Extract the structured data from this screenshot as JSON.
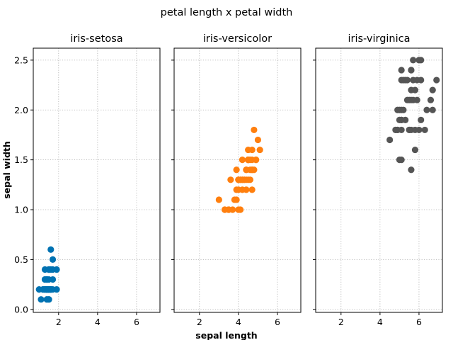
{
  "chart_data": {
    "type": "scatter",
    "title": "petal length x petal width",
    "xlabel": "sepal length",
    "ylabel": "sepal width",
    "xlim": [
      0.7,
      7.2
    ],
    "ylim": [
      -0.03,
      2.62
    ],
    "xticks": [
      "2",
      "4",
      "6"
    ],
    "yticks": [
      "0.0",
      "0.5",
      "1.0",
      "1.5",
      "2.0",
      "2.5"
    ],
    "grid": true,
    "panels": [
      {
        "title": "iris-setosa",
        "color": "#0072b2",
        "x": [
          1.4,
          1.4,
          1.3,
          1.5,
          1.4,
          1.7,
          1.4,
          1.5,
          1.4,
          1.5,
          1.5,
          1.6,
          1.4,
          1.1,
          1.2,
          1.5,
          1.3,
          1.4,
          1.7,
          1.5,
          1.7,
          1.5,
          1.0,
          1.7,
          1.9,
          1.6,
          1.6,
          1.5,
          1.4,
          1.6,
          1.6,
          1.5,
          1.5,
          1.4,
          1.5,
          1.2,
          1.3,
          1.4,
          1.3,
          1.5,
          1.3,
          1.3,
          1.3,
          1.6,
          1.9,
          1.4,
          1.6,
          1.4,
          1.5,
          1.4
        ],
        "y": [
          0.2,
          0.2,
          0.2,
          0.2,
          0.2,
          0.4,
          0.3,
          0.2,
          0.2,
          0.1,
          0.2,
          0.2,
          0.1,
          0.1,
          0.2,
          0.4,
          0.4,
          0.3,
          0.3,
          0.3,
          0.2,
          0.4,
          0.2,
          0.5,
          0.2,
          0.2,
          0.4,
          0.2,
          0.2,
          0.2,
          0.2,
          0.4,
          0.1,
          0.2,
          0.2,
          0.2,
          0.2,
          0.1,
          0.2,
          0.2,
          0.3,
          0.3,
          0.2,
          0.6,
          0.4,
          0.3,
          0.2,
          0.2,
          0.2,
          0.2
        ]
      },
      {
        "title": "iris-versicolor",
        "color": "#ff7f0e",
        "x": [
          4.7,
          4.5,
          4.9,
          4.0,
          4.6,
          4.5,
          4.7,
          3.3,
          4.6,
          3.9,
          3.5,
          4.2,
          4.0,
          4.7,
          3.6,
          4.4,
          4.5,
          4.1,
          4.5,
          3.9,
          4.8,
          4.0,
          4.9,
          4.7,
          4.3,
          4.4,
          4.8,
          5.0,
          4.5,
          3.5,
          3.8,
          3.7,
          3.9,
          5.1,
          4.5,
          4.5,
          4.7,
          4.4,
          4.1,
          4.0,
          4.4,
          4.6,
          4.0,
          3.3,
          4.2,
          4.2,
          4.2,
          4.3,
          3.0,
          4.1
        ],
        "y": [
          1.4,
          1.5,
          1.5,
          1.3,
          1.5,
          1.3,
          1.6,
          1.0,
          1.3,
          1.4,
          1.0,
          1.5,
          1.0,
          1.4,
          1.3,
          1.4,
          1.5,
          1.0,
          1.5,
          1.1,
          1.8,
          1.3,
          1.5,
          1.2,
          1.3,
          1.4,
          1.4,
          1.7,
          1.5,
          1.0,
          1.1,
          1.0,
          1.2,
          1.6,
          1.5,
          1.6,
          1.5,
          1.3,
          1.3,
          1.3,
          1.2,
          1.4,
          1.2,
          1.0,
          1.3,
          1.2,
          1.3,
          1.3,
          1.1,
          1.3
        ]
      },
      {
        "title": "iris-virginica",
        "color": "#555555",
        "x": [
          6.0,
          5.1,
          5.9,
          5.6,
          5.8,
          6.6,
          4.5,
          6.3,
          5.8,
          6.1,
          5.1,
          5.3,
          5.5,
          5.0,
          5.1,
          5.3,
          5.5,
          6.7,
          6.9,
          5.0,
          5.7,
          4.9,
          6.7,
          4.9,
          5.7,
          6.0,
          4.8,
          4.9,
          5.6,
          5.8,
          6.1,
          6.4,
          5.6,
          5.1,
          5.6,
          6.1,
          5.6,
          5.5,
          4.8,
          5.4,
          5.6,
          5.1,
          5.1,
          5.9,
          5.7,
          5.2,
          5.0,
          5.2,
          5.4,
          5.1
        ],
        "y": [
          2.5,
          1.9,
          2.1,
          1.8,
          2.2,
          2.1,
          1.7,
          1.8,
          1.8,
          2.5,
          2.0,
          1.9,
          2.1,
          2.0,
          2.4,
          2.3,
          1.8,
          2.2,
          2.3,
          1.5,
          2.3,
          2.0,
          2.0,
          1.8,
          2.1,
          1.8,
          1.8,
          1.8,
          2.1,
          1.6,
          1.9,
          2.0,
          2.2,
          1.5,
          1.4,
          2.3,
          2.4,
          1.8,
          1.8,
          2.1,
          2.4,
          2.3,
          1.9,
          2.3,
          2.5,
          2.3,
          1.9,
          2.0,
          2.3,
          1.8
        ]
      }
    ]
  }
}
